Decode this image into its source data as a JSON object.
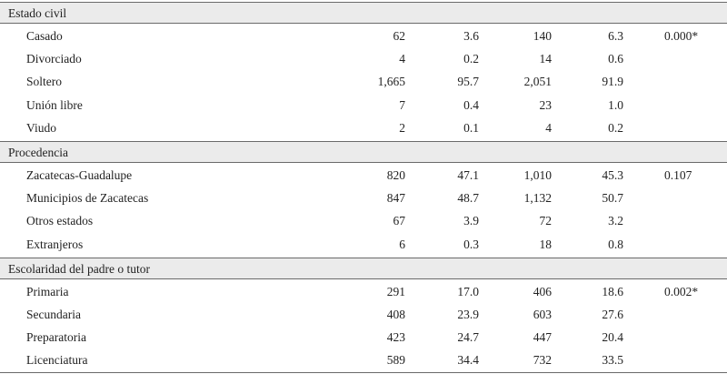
{
  "sections": [
    {
      "header": "Estado civil",
      "rows": [
        {
          "label": "Casado",
          "n1": "62",
          "p1": "3.6",
          "n2": "140",
          "p2": "6.3",
          "pvalue": "0.000*"
        },
        {
          "label": "Divorciado",
          "n1": "4",
          "p1": "0.2",
          "n2": "14",
          "p2": "0.6",
          "pvalue": ""
        },
        {
          "label": "Soltero",
          "n1": "1,665",
          "p1": "95.7",
          "n2": "2,051",
          "p2": "91.9",
          "pvalue": ""
        },
        {
          "label": "Unión libre",
          "n1": "7",
          "p1": "0.4",
          "n2": "23",
          "p2": "1.0",
          "pvalue": ""
        },
        {
          "label": "Viudo",
          "n1": "2",
          "p1": "0.1",
          "n2": "4",
          "p2": "0.2",
          "pvalue": ""
        }
      ]
    },
    {
      "header": "Procedencia",
      "rows": [
        {
          "label": "Zacatecas-Guadalupe",
          "n1": "820",
          "p1": "47.1",
          "n2": "1,010",
          "p2": "45.3",
          "pvalue": "0.107"
        },
        {
          "label": "Municipios de Zacatecas",
          "n1": "847",
          "p1": "48.7",
          "n2": "1,132",
          "p2": "50.7",
          "pvalue": ""
        },
        {
          "label": "Otros estados",
          "n1": "67",
          "p1": "3.9",
          "n2": "72",
          "p2": "3.2",
          "pvalue": ""
        },
        {
          "label": "Extranjeros",
          "n1": "6",
          "p1": "0.3",
          "n2": "18",
          "p2": "0.8",
          "pvalue": ""
        }
      ]
    },
    {
      "header": "Escolaridad del padre o tutor",
      "rows": [
        {
          "label": "Primaria",
          "n1": "291",
          "p1": "17.0",
          "n2": "406",
          "p2": "18.6",
          "pvalue": "0.002*"
        },
        {
          "label": "Secundaria",
          "n1": "408",
          "p1": "23.9",
          "n2": "603",
          "p2": "27.6",
          "pvalue": ""
        },
        {
          "label": "Preparatoria",
          "n1": "423",
          "p1": "24.7",
          "n2": "447",
          "p2": "20.4",
          "pvalue": ""
        },
        {
          "label": "Licenciatura",
          "n1": "589",
          "p1": "34.4",
          "n2": "732",
          "p2": "33.5",
          "pvalue": ""
        }
      ]
    }
  ]
}
